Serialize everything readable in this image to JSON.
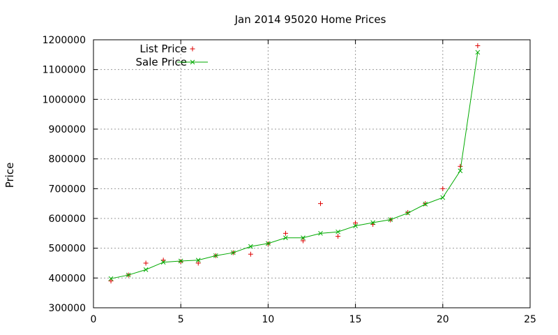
{
  "chart_data": {
    "type": "scatter+line",
    "title": "Jan 2014 95020 Home Prices",
    "xlabel": "",
    "ylabel": "Price",
    "xlim": [
      0,
      25
    ],
    "ylim": [
      300000,
      1200000
    ],
    "x_ticks": [
      0,
      5,
      10,
      15,
      20,
      25
    ],
    "y_ticks": [
      300000,
      400000,
      500000,
      600000,
      700000,
      800000,
      900000,
      1000000,
      1100000,
      1200000
    ],
    "grid": true,
    "legend_position": "top-left",
    "series": [
      {
        "name": "List Price",
        "style": "points",
        "marker": "+",
        "color": "#dd0000",
        "x": [
          1,
          2,
          3,
          4,
          5,
          6,
          7,
          8,
          9,
          10,
          11,
          12,
          13,
          14,
          15,
          16,
          17,
          18,
          19,
          20,
          21,
          22
        ],
        "y": [
          390000,
          410000,
          450000,
          460000,
          455000,
          450000,
          475000,
          485000,
          480000,
          515000,
          550000,
          525000,
          650000,
          540000,
          585000,
          580000,
          595000,
          620000,
          650000,
          700000,
          775000,
          1180000
        ]
      },
      {
        "name": "Sale Price",
        "style": "linespoints",
        "marker": "x",
        "color": "#00aa00",
        "x": [
          1,
          2,
          3,
          4,
          5,
          6,
          7,
          8,
          9,
          10,
          11,
          12,
          13,
          14,
          15,
          16,
          17,
          18,
          19,
          20,
          21,
          22
        ],
        "y": [
          398000,
          410000,
          428000,
          453000,
          457000,
          460000,
          475000,
          485000,
          506000,
          516000,
          535000,
          535000,
          550000,
          555000,
          575000,
          586000,
          596000,
          618000,
          648000,
          670000,
          760000,
          1158000
        ]
      }
    ]
  }
}
